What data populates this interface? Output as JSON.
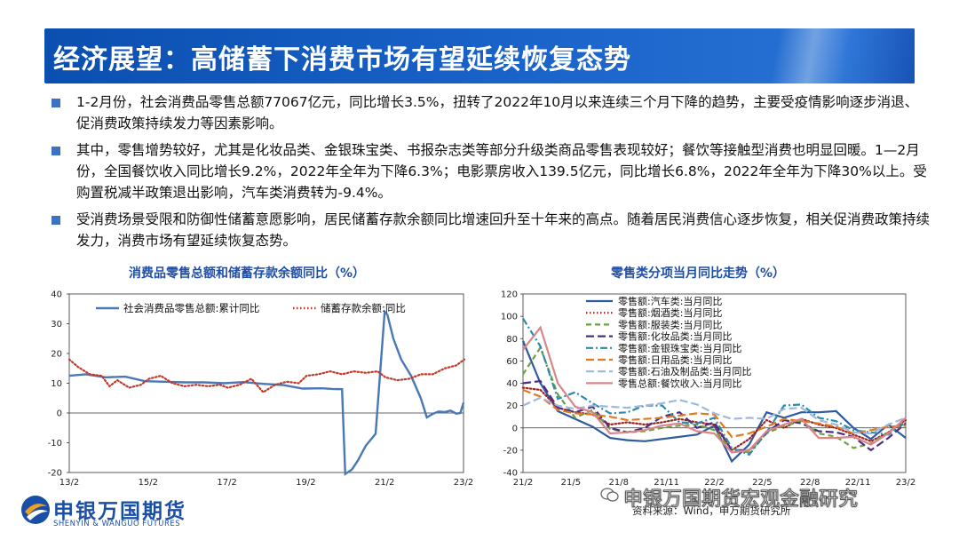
{
  "header": {
    "title": "经济展望：高储蓄下消费市场有望延续恢复态势"
  },
  "bullets": [
    "1-2月份，社会消费品零售总额77067亿元，同比增长3.5%，扭转了2022年10月以来连续三个月下降的趋势，主要受疫情影响逐步消退、促消费政策持续发力等因素影响。",
    "其中，零售增势较好，尤其是化妆品类、金银珠宝类、书报杂志类等部分升级类商品零售表现较好；餐饮等接触型消费也明显回暖。1—2月份，全国餐饮收入同比增长9.2%，2022年全年为下降6.3%；电影票房收入139.5亿元，同比增长6.8%，2022年全年为下降30%以上。受购置税减半政策退出影响，汽车类消费转为-9.4%。",
    "受消费场景受限和防御性储蓄意愿影响，居民储蓄存款余额同比增速回升至十年来的高点。随着居民消费信心逐步恢复，相关促消费政策持续发力，消费市场有望延续恢复态势。"
  ],
  "footer": {
    "logo_cn": "申银万国期货",
    "logo_en": "SHENYIN & WANGUO FUTURES",
    "source": "资料来源：Wind，申万期货研究所",
    "watermark": "申银万国期货宏观金融研究"
  },
  "colors": {
    "brand_blue": "#1a4fa6",
    "header_blue": "#0b4fb0",
    "chart_title": "#1f4fa8"
  },
  "chart_data": [
    {
      "type": "line",
      "title": "消费品零售总额和储蓄存款余额同比（%）",
      "xlabel": "",
      "ylabel": "",
      "ylim": [
        -20,
        40
      ],
      "yticks": [
        "40",
        "30",
        "20",
        "10",
        "0",
        "-10",
        "-20"
      ],
      "xticks": [
        "13/2",
        "15/2",
        "17/2",
        "19/2",
        "21/2",
        "23/2"
      ],
      "grid": false,
      "legend": "top",
      "series": [
        {
          "name": "社会消费品零售总额:累计同比",
          "color": "#4a78b5",
          "style": "solid",
          "x": [
            2013.08,
            2013.5,
            2014.0,
            2014.5,
            2015.0,
            2015.5,
            2016.0,
            2016.5,
            2017.0,
            2017.5,
            2018.0,
            2018.5,
            2019.0,
            2019.5,
            2019.75,
            2020.0,
            2020.08,
            2020.25,
            2020.4,
            2020.6,
            2020.85,
            2021.08,
            2021.15,
            2021.3,
            2021.5,
            2021.75,
            2022.0,
            2022.15,
            2022.3,
            2022.45,
            2022.6,
            2022.75,
            2022.9,
            2023.0,
            2023.08
          ],
          "y": [
            12.5,
            13.0,
            12.0,
            12.2,
            10.7,
            10.5,
            10.3,
            10.3,
            10.0,
            10.4,
            9.8,
            9.4,
            8.2,
            8.3,
            8.1,
            8.0,
            -20.5,
            -19.0,
            -16.0,
            -11.0,
            -7.0,
            34.0,
            33.0,
            25.0,
            18.0,
            12.5,
            4.9,
            -1.5,
            -0.3,
            0.5,
            0.3,
            0.8,
            -0.2,
            0.0,
            3.5
          ]
        },
        {
          "name": "储蓄存款余额:同比",
          "color": "#c0392b",
          "style": "dotted",
          "x": [
            2013.08,
            2013.3,
            2013.6,
            2013.9,
            2014.1,
            2014.3,
            2014.6,
            2014.9,
            2015.1,
            2015.4,
            2015.7,
            2016.0,
            2016.3,
            2016.6,
            2016.9,
            2017.1,
            2017.4,
            2017.7,
            2018.0,
            2018.3,
            2018.6,
            2018.9,
            2019.1,
            2019.4,
            2019.7,
            2020.0,
            2020.3,
            2020.6,
            2020.9,
            2021.1,
            2021.4,
            2021.7,
            2022.0,
            2022.3,
            2022.6,
            2022.9,
            2023.1
          ],
          "y": [
            18.0,
            15.5,
            13.0,
            12.5,
            9.0,
            11.0,
            8.5,
            9.5,
            11.5,
            12.5,
            10.0,
            9.0,
            9.5,
            9.0,
            9.5,
            8.5,
            9.5,
            11.5,
            7.0,
            9.5,
            10.5,
            10.0,
            12.5,
            13.0,
            14.0,
            13.0,
            14.0,
            13.5,
            14.0,
            12.0,
            11.0,
            11.5,
            13.0,
            13.0,
            15.0,
            16.0,
            18.0
          ]
        }
      ]
    },
    {
      "type": "line",
      "title": "零售类分项当月同比走势（%）",
      "xlabel": "",
      "ylabel": "",
      "ylim": [
        -40,
        120
      ],
      "yticks": [
        "120",
        "100",
        "80",
        "60",
        "40",
        "20",
        "0",
        "-20",
        "-40"
      ],
      "xticks": [
        "21/2",
        "21/5",
        "21/8",
        "21/11",
        "22/2",
        "22/5",
        "22/8",
        "22/11",
        "23/2"
      ],
      "grid": false,
      "legend": "top-left",
      "series": [
        {
          "name": "零售额:汽车类:当月同比",
          "color": "#2e5a9e",
          "style": "solid",
          "y": [
            78,
            40,
            15,
            8,
            1,
            -9,
            -11,
            -12,
            -10,
            -8,
            -6,
            2,
            -30,
            -15,
            14,
            9,
            14,
            14,
            15,
            0,
            -10,
            3,
            -9
          ]
        },
        {
          "name": "零售额:烟酒类:当月同比",
          "color": "#a02020",
          "style": "dotted",
          "y": [
            36,
            34,
            18,
            14,
            12,
            3,
            5,
            3,
            5,
            8,
            5,
            3,
            -20,
            -10,
            7,
            0,
            8,
            3,
            0,
            -6,
            -12,
            -4,
            7
          ]
        },
        {
          "name": "零售额:服装类:当月同比",
          "color": "#6fa043",
          "style": "dashed",
          "y": [
            48,
            72,
            30,
            9,
            16,
            -1,
            -4,
            -3,
            0,
            2,
            3,
            -2,
            -20,
            -22,
            -5,
            2,
            6,
            -5,
            -8,
            -18,
            -14,
            -4,
            8
          ]
        },
        {
          "name": "零售额:化妆品类:当月同比",
          "color": "#4b2e83",
          "style": "longdash",
          "y": [
            40,
            42,
            18,
            14,
            19,
            0,
            -4,
            0,
            10,
            14,
            0,
            5,
            -20,
            -20,
            -4,
            7,
            4,
            -3,
            -4,
            -8,
            -20,
            -9,
            4
          ]
        },
        {
          "name": "零售额:金银珠宝类:当月同比",
          "color": "#2e8ba8",
          "style": "dashdot",
          "y": [
            98,
            73,
            26,
            32,
            22,
            13,
            14,
            20,
            20,
            5,
            4,
            9,
            -18,
            -24,
            -4,
            20,
            21,
            9,
            6,
            -2,
            -4,
            -6,
            5
          ]
        },
        {
          "name": "零售额:日用品类:当月同比",
          "color": "#e07a1f",
          "style": "longdash",
          "y": [
            34,
            28,
            16,
            13,
            12,
            10,
            7,
            8,
            9,
            11,
            13,
            12,
            -8,
            -5,
            1,
            8,
            6,
            4,
            1,
            -5,
            -2,
            1,
            2
          ]
        },
        {
          "name": "零售额:石油及制品类:当月同比",
          "color": "#9eb7dc",
          "style": "longdash",
          "y": [
            20,
            27,
            20,
            17,
            20,
            19,
            18,
            20,
            22,
            25,
            21,
            13,
            8,
            9,
            8,
            17,
            18,
            7,
            3,
            -4,
            -5,
            3,
            9
          ]
        },
        {
          "name": "零售总额:餐饮收入:当月同比",
          "color": "#d9858a",
          "style": "solid",
          "y": [
            70,
            90,
            40,
            19,
            14,
            -5,
            -4,
            -2,
            2,
            4,
            -3,
            -5,
            -22,
            -20,
            -3,
            3,
            8,
            -9,
            -9,
            -8,
            -15,
            -5,
            9
          ]
        }
      ]
    }
  ]
}
